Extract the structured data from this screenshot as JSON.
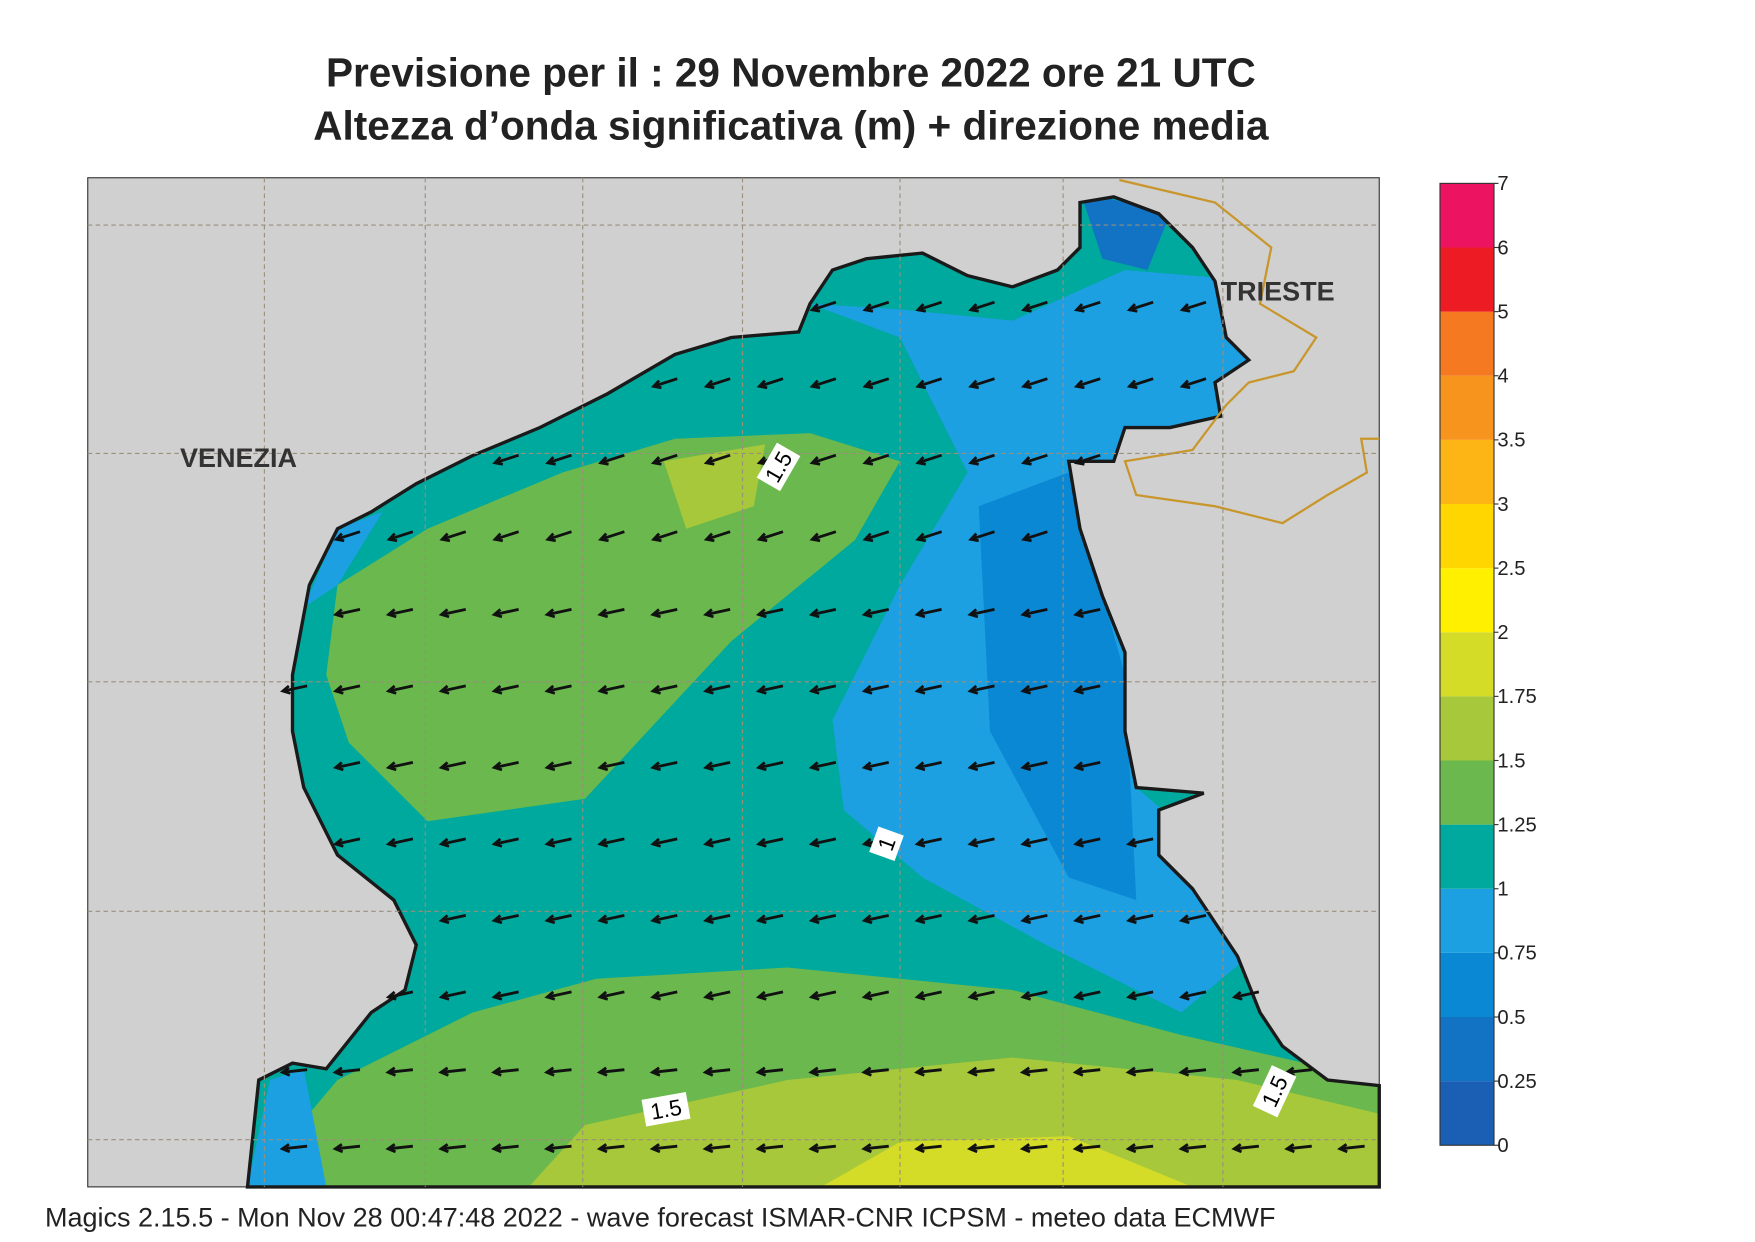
{
  "title": [
    "Previsione per il  :  29 Novembre  2022   ore 21 UTC",
    "Altezza d’onda significativa (m) + direzione media"
  ],
  "cities": [
    "VENEZIA",
    "TRIESTE"
  ],
  "contour_labels": [
    "1.5",
    "1",
    "1.5",
    "1.5"
  ],
  "colorbar": {
    "levels": [
      0,
      0.25,
      0.5,
      0.75,
      1,
      1.25,
      1.5,
      1.75,
      2,
      2.5,
      3,
      3.5,
      4,
      5,
      6,
      7
    ],
    "colors": [
      "#1a5fb4",
      "#1272c4",
      "#0b88d4",
      "#1ca0e2",
      "#00a99d",
      "#6ab84e",
      "#a6c83a",
      "#d4dc28",
      "#fff000",
      "#ffd600",
      "#fdb515",
      "#f7941d",
      "#f47920",
      "#ed1c24",
      "#ec1460"
    ]
  },
  "footer": "Magics 2.15.5 - Mon Nov 28 00:47:48 2022 - wave forecast  ISMAR-CNR  ICPSM - meteo data   ECMWF"
}
